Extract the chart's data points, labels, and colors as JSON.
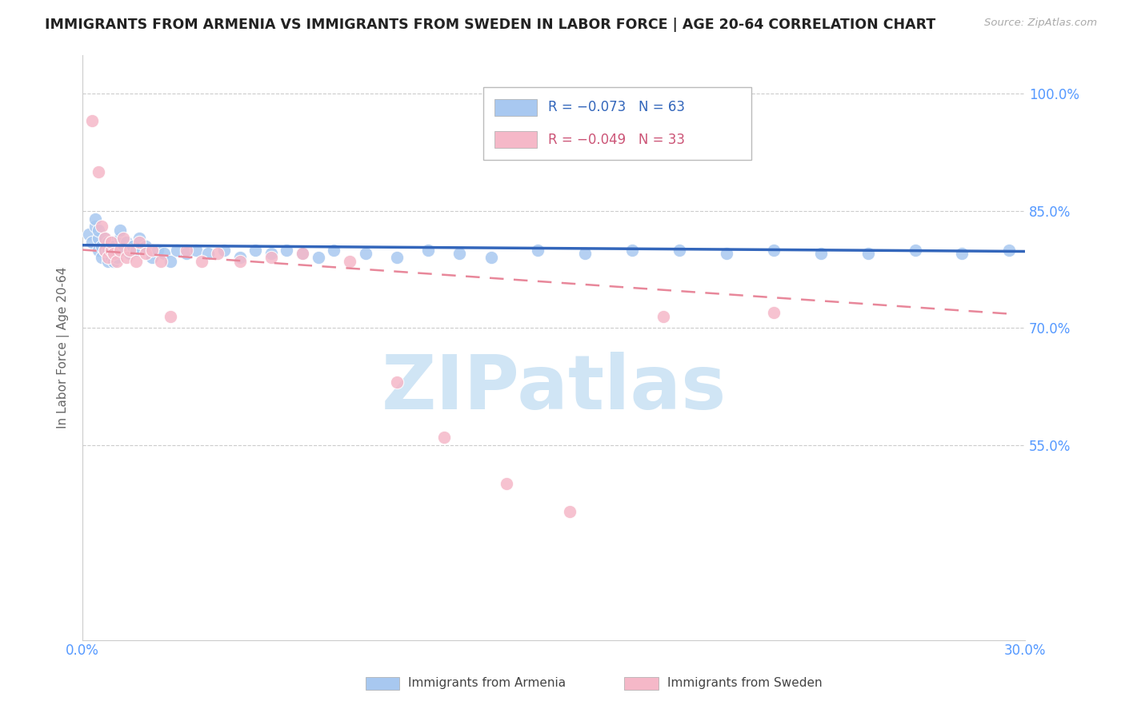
{
  "title": "IMMIGRANTS FROM ARMENIA VS IMMIGRANTS FROM SWEDEN IN LABOR FORCE | AGE 20-64 CORRELATION CHART",
  "source": "Source: ZipAtlas.com",
  "ylabel": "In Labor Force | Age 20-64",
  "xlim": [
    0.0,
    0.3
  ],
  "ylim": [
    0.3,
    1.05
  ],
  "yticks": [
    1.0,
    0.85,
    0.7,
    0.55
  ],
  "ytick_labels": [
    "100.0%",
    "85.0%",
    "70.0%",
    "55.0%"
  ],
  "xticks": [
    0.0,
    0.05,
    0.1,
    0.15,
    0.2,
    0.25,
    0.3
  ],
  "xtick_labels": [
    "0.0%",
    "",
    "",
    "",
    "",
    "",
    "30.0%"
  ],
  "armenia_R": -0.073,
  "armenia_N": 63,
  "sweden_R": -0.049,
  "sweden_N": 33,
  "armenia_color": "#a8c8f0",
  "sweden_color": "#f5b8c8",
  "trendline_armenia_color": "#3366bb",
  "trendline_sweden_color": "#e8879a",
  "background_color": "#ffffff",
  "grid_color": "#cccccc",
  "axis_label_color": "#5599ff",
  "title_color": "#222222",
  "watermark_text": "ZIPatlas",
  "watermark_color": "#d0e5f5",
  "legend_label1": "R = −0.073   N = 63",
  "legend_label2": "R = −0.049   N = 33",
  "legend_color1": "#3366bb",
  "legend_color2": "#cc5577",
  "bottom_label1": "Immigrants from Armenia",
  "bottom_label2": "Immigrants from Sweden",
  "armenia_x": [
    0.002,
    0.003,
    0.004,
    0.004,
    0.005,
    0.005,
    0.005,
    0.006,
    0.006,
    0.007,
    0.007,
    0.008,
    0.008,
    0.008,
    0.009,
    0.009,
    0.009,
    0.01,
    0.01,
    0.01,
    0.011,
    0.011,
    0.012,
    0.012,
    0.013,
    0.014,
    0.015,
    0.016,
    0.017,
    0.018,
    0.02,
    0.022,
    0.024,
    0.026,
    0.028,
    0.03,
    0.033,
    0.036,
    0.04,
    0.045,
    0.05,
    0.055,
    0.06,
    0.065,
    0.07,
    0.075,
    0.08,
    0.09,
    0.1,
    0.11,
    0.12,
    0.13,
    0.145,
    0.16,
    0.175,
    0.19,
    0.205,
    0.22,
    0.235,
    0.25,
    0.265,
    0.28,
    0.295
  ],
  "armenia_y": [
    0.82,
    0.81,
    0.83,
    0.84,
    0.8,
    0.815,
    0.825,
    0.79,
    0.805,
    0.8,
    0.815,
    0.785,
    0.8,
    0.81,
    0.79,
    0.8,
    0.81,
    0.785,
    0.795,
    0.805,
    0.79,
    0.8,
    0.815,
    0.825,
    0.8,
    0.81,
    0.795,
    0.805,
    0.8,
    0.815,
    0.805,
    0.79,
    0.8,
    0.795,
    0.785,
    0.8,
    0.795,
    0.8,
    0.795,
    0.8,
    0.79,
    0.8,
    0.795,
    0.8,
    0.795,
    0.79,
    0.8,
    0.795,
    0.79,
    0.8,
    0.795,
    0.79,
    0.8,
    0.795,
    0.8,
    0.8,
    0.795,
    0.8,
    0.795,
    0.795,
    0.8,
    0.795,
    0.8
  ],
  "sweden_x": [
    0.003,
    0.005,
    0.006,
    0.007,
    0.007,
    0.008,
    0.009,
    0.009,
    0.01,
    0.011,
    0.012,
    0.013,
    0.014,
    0.015,
    0.017,
    0.018,
    0.02,
    0.022,
    0.025,
    0.028,
    0.033,
    0.038,
    0.043,
    0.05,
    0.06,
    0.07,
    0.085,
    0.1,
    0.115,
    0.135,
    0.155,
    0.185,
    0.22
  ],
  "sweden_y": [
    0.965,
    0.9,
    0.83,
    0.8,
    0.815,
    0.79,
    0.8,
    0.81,
    0.795,
    0.785,
    0.8,
    0.815,
    0.79,
    0.8,
    0.785,
    0.81,
    0.795,
    0.8,
    0.785,
    0.715,
    0.8,
    0.785,
    0.795,
    0.785,
    0.79,
    0.795,
    0.785,
    0.63,
    0.56,
    0.5,
    0.465,
    0.715,
    0.72
  ],
  "arm_trend_x0": 0.0,
  "arm_trend_x1": 0.3,
  "arm_trend_y0": 0.806,
  "arm_trend_y1": 0.798,
  "swe_trend_x0": 0.0,
  "swe_trend_x1": 0.295,
  "swe_trend_y0": 0.8,
  "swe_trend_y1": 0.718
}
